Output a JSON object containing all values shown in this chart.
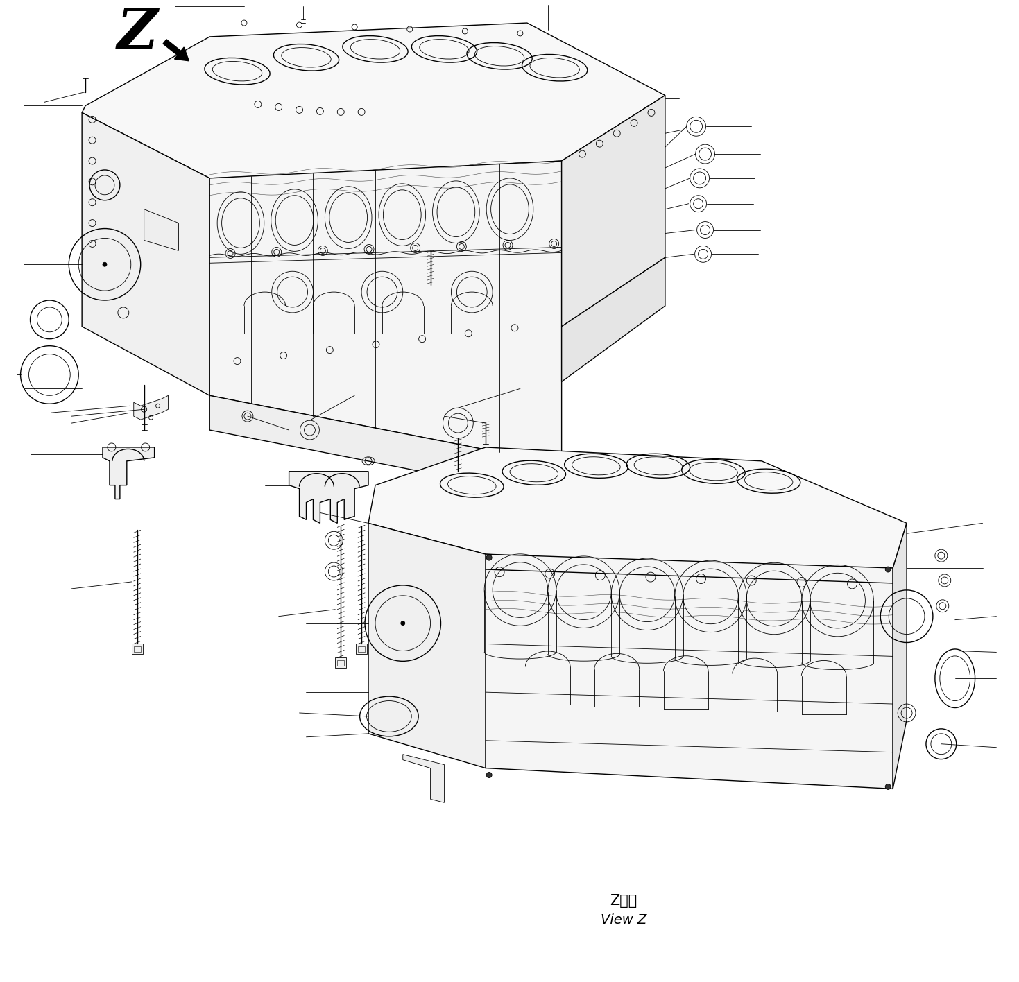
{
  "background_color": "#ffffff",
  "line_color": "#000000",
  "fig_width": 14.69,
  "fig_height": 14.16,
  "lw_thin": 0.6,
  "lw_med": 1.0,
  "lw_thick": 1.8,
  "view_z_label": "Z　視",
  "view_z_sub": "View Z"
}
